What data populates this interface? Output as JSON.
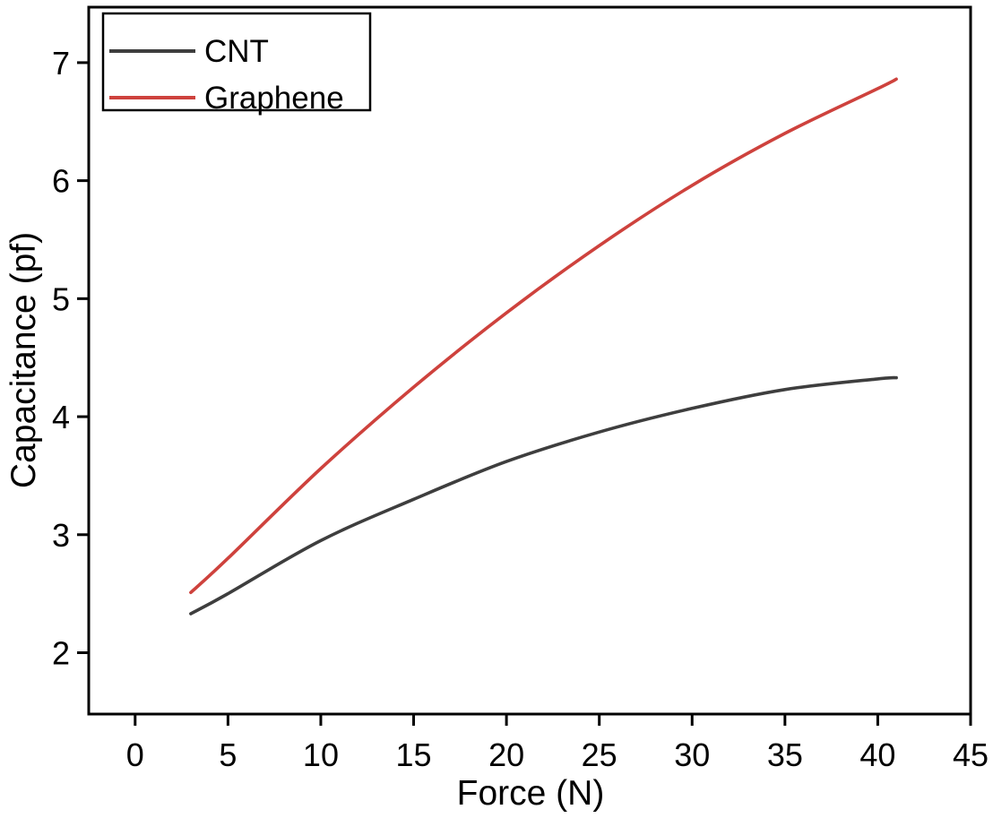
{
  "chart_data": {
    "type": "line",
    "title": "",
    "xlabel": "Force (N)",
    "ylabel": "Capacitance (pf)",
    "xlim": [
      -2.5,
      45
    ],
    "ylim": [
      1.48,
      7.47
    ],
    "x_ticks": [
      0,
      5,
      10,
      15,
      20,
      25,
      30,
      35,
      40,
      45
    ],
    "y_ticks": [
      2,
      3,
      4,
      5,
      6,
      7
    ],
    "grid": false,
    "legend_position": "top-left",
    "legend_entries": [
      "CNT",
      "Graphene"
    ],
    "series": [
      {
        "name": "CNT",
        "color": "#3e3e3e",
        "x": [
          3,
          5,
          10,
          15,
          20,
          25,
          30,
          35,
          40,
          41
        ],
        "y": [
          2.33,
          2.5,
          2.95,
          3.3,
          3.62,
          3.87,
          4.07,
          4.23,
          4.32,
          4.33
        ]
      },
      {
        "name": "Graphene",
        "color": "#ce423d",
        "x": [
          3,
          5,
          10,
          15,
          20,
          25,
          30,
          35,
          40,
          41
        ],
        "y": [
          2.51,
          2.8,
          3.56,
          4.25,
          4.88,
          5.45,
          5.96,
          6.4,
          6.78,
          6.86
        ]
      }
    ],
    "frame_color": "#000000",
    "text_color": "#000000",
    "background": "#ffffff"
  }
}
